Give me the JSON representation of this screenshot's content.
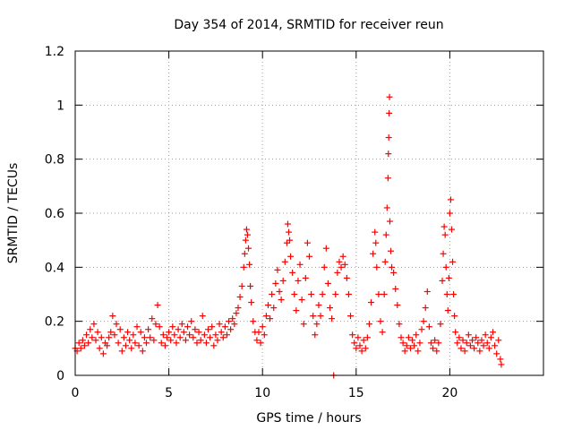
{
  "chart_data": {
    "type": "scatter",
    "title": "Day 354 of 2014, SRMTID for receiver reun",
    "xlabel": "GPS time / hours",
    "ylabel": "SRMTID / TECUs",
    "xlim": [
      0,
      25
    ],
    "ylim": [
      0,
      1.2
    ],
    "xticks": [
      0,
      5,
      10,
      15,
      20
    ],
    "yticks": [
      0,
      0.2,
      0.4,
      0.6,
      0.8,
      1,
      1.2
    ],
    "xtick_labels": [
      "0",
      "5",
      "10",
      "15",
      "20"
    ],
    "ytick_labels": [
      "0",
      "0.2",
      "0.4",
      "0.6",
      "0.8",
      "1",
      "1.2"
    ],
    "grid": true,
    "marker": "plus",
    "color": "#ff0000",
    "series": [
      {
        "name": "SRMTID",
        "points": [
          [
            0.0,
            0.1
          ],
          [
            0.1,
            0.09
          ],
          [
            0.2,
            0.12
          ],
          [
            0.3,
            0.1
          ],
          [
            0.4,
            0.13
          ],
          [
            0.5,
            0.11
          ],
          [
            0.6,
            0.15
          ],
          [
            0.7,
            0.12
          ],
          [
            0.8,
            0.17
          ],
          [
            0.9,
            0.14
          ],
          [
            1.0,
            0.19
          ],
          [
            1.1,
            0.13
          ],
          [
            1.2,
            0.16
          ],
          [
            1.3,
            0.1
          ],
          [
            1.4,
            0.14
          ],
          [
            1.5,
            0.08
          ],
          [
            1.6,
            0.12
          ],
          [
            1.7,
            0.11
          ],
          [
            1.8,
            0.14
          ],
          [
            1.9,
            0.16
          ],
          [
            2.0,
            0.22
          ],
          [
            2.1,
            0.15
          ],
          [
            2.2,
            0.19
          ],
          [
            2.3,
            0.12
          ],
          [
            2.4,
            0.17
          ],
          [
            2.5,
            0.09
          ],
          [
            2.6,
            0.14
          ],
          [
            2.7,
            0.11
          ],
          [
            2.8,
            0.16
          ],
          [
            2.9,
            0.13
          ],
          [
            3.0,
            0.1
          ],
          [
            3.1,
            0.15
          ],
          [
            3.2,
            0.12
          ],
          [
            3.3,
            0.18
          ],
          [
            3.4,
            0.11
          ],
          [
            3.5,
            0.16
          ],
          [
            3.6,
            0.09
          ],
          [
            3.7,
            0.14
          ],
          [
            3.8,
            0.12
          ],
          [
            3.9,
            0.17
          ],
          [
            4.0,
            0.14
          ],
          [
            4.1,
            0.21
          ],
          [
            4.2,
            0.13
          ],
          [
            4.3,
            0.19
          ],
          [
            4.4,
            0.26
          ],
          [
            4.5,
            0.18
          ],
          [
            4.6,
            0.12
          ],
          [
            4.7,
            0.15
          ],
          [
            4.8,
            0.11
          ],
          [
            4.9,
            0.14
          ],
          [
            5.0,
            0.16
          ],
          [
            5.1,
            0.13
          ],
          [
            5.2,
            0.18
          ],
          [
            5.3,
            0.15
          ],
          [
            5.4,
            0.12
          ],
          [
            5.5,
            0.17
          ],
          [
            5.6,
            0.14
          ],
          [
            5.7,
            0.19
          ],
          [
            5.8,
            0.16
          ],
          [
            5.9,
            0.13
          ],
          [
            6.0,
            0.18
          ],
          [
            6.1,
            0.15
          ],
          [
            6.2,
            0.2
          ],
          [
            6.3,
            0.14
          ],
          [
            6.4,
            0.17
          ],
          [
            6.5,
            0.12
          ],
          [
            6.6,
            0.16
          ],
          [
            6.7,
            0.13
          ],
          [
            6.8,
            0.22
          ],
          [
            6.9,
            0.15
          ],
          [
            7.0,
            0.12
          ],
          [
            7.1,
            0.17
          ],
          [
            7.2,
            0.14
          ],
          [
            7.3,
            0.18
          ],
          [
            7.4,
            0.11
          ],
          [
            7.5,
            0.15
          ],
          [
            7.6,
            0.13
          ],
          [
            7.7,
            0.19
          ],
          [
            7.8,
            0.16
          ],
          [
            7.9,
            0.14
          ],
          [
            8.0,
            0.18
          ],
          [
            8.1,
            0.15
          ],
          [
            8.2,
            0.2
          ],
          [
            8.3,
            0.17
          ],
          [
            8.4,
            0.21
          ],
          [
            8.5,
            0.19
          ],
          [
            8.6,
            0.23
          ],
          [
            8.7,
            0.25
          ],
          [
            8.8,
            0.29
          ],
          [
            8.9,
            0.33
          ],
          [
            9.0,
            0.4
          ],
          [
            9.05,
            0.45
          ],
          [
            9.1,
            0.5
          ],
          [
            9.15,
            0.54
          ],
          [
            9.2,
            0.52
          ],
          [
            9.25,
            0.47
          ],
          [
            9.3,
            0.41
          ],
          [
            9.35,
            0.33
          ],
          [
            9.4,
            0.27
          ],
          [
            9.5,
            0.2
          ],
          [
            9.6,
            0.16
          ],
          [
            9.7,
            0.13
          ],
          [
            9.8,
            0.16
          ],
          [
            9.9,
            0.12
          ],
          [
            10.0,
            0.18
          ],
          [
            10.1,
            0.15
          ],
          [
            10.2,
            0.22
          ],
          [
            10.3,
            0.26
          ],
          [
            10.4,
            0.21
          ],
          [
            10.5,
            0.3
          ],
          [
            10.6,
            0.25
          ],
          [
            10.7,
            0.34
          ],
          [
            10.8,
            0.39
          ],
          [
            10.9,
            0.31
          ],
          [
            11.0,
            0.28
          ],
          [
            11.1,
            0.35
          ],
          [
            11.2,
            0.42
          ],
          [
            11.3,
            0.49
          ],
          [
            11.35,
            0.56
          ],
          [
            11.4,
            0.53
          ],
          [
            11.45,
            0.5
          ],
          [
            11.5,
            0.44
          ],
          [
            11.6,
            0.38
          ],
          [
            11.7,
            0.3
          ],
          [
            11.8,
            0.24
          ],
          [
            11.9,
            0.35
          ],
          [
            12.0,
            0.41
          ],
          [
            12.1,
            0.28
          ],
          [
            12.2,
            0.19
          ],
          [
            12.3,
            0.36
          ],
          [
            12.4,
            0.49
          ],
          [
            12.5,
            0.44
          ],
          [
            12.6,
            0.3
          ],
          [
            12.7,
            0.22
          ],
          [
            12.8,
            0.15
          ],
          [
            12.9,
            0.19
          ],
          [
            13.0,
            0.26
          ],
          [
            13.1,
            0.22
          ],
          [
            13.2,
            0.3
          ],
          [
            13.3,
            0.4
          ],
          [
            13.4,
            0.47
          ],
          [
            13.5,
            0.34
          ],
          [
            13.6,
            0.25
          ],
          [
            13.7,
            0.21
          ],
          [
            13.8,
            0.0
          ],
          [
            13.9,
            0.3
          ],
          [
            14.0,
            0.38
          ],
          [
            14.1,
            0.42
          ],
          [
            14.2,
            0.4
          ],
          [
            14.3,
            0.44
          ],
          [
            14.4,
            0.41
          ],
          [
            14.5,
            0.36
          ],
          [
            14.6,
            0.3
          ],
          [
            14.7,
            0.22
          ],
          [
            14.8,
            0.15
          ],
          [
            14.9,
            0.12
          ],
          [
            15.0,
            0.1
          ],
          [
            15.1,
            0.14
          ],
          [
            15.2,
            0.11
          ],
          [
            15.3,
            0.09
          ],
          [
            15.4,
            0.13
          ],
          [
            15.5,
            0.1
          ],
          [
            15.6,
            0.14
          ],
          [
            15.7,
            0.19
          ],
          [
            15.8,
            0.27
          ],
          [
            15.9,
            0.45
          ],
          [
            16.0,
            0.53
          ],
          [
            16.05,
            0.49
          ],
          [
            16.1,
            0.4
          ],
          [
            16.2,
            0.3
          ],
          [
            16.3,
            0.2
          ],
          [
            16.4,
            0.16
          ],
          [
            16.5,
            0.3
          ],
          [
            16.55,
            0.42
          ],
          [
            16.6,
            0.52
          ],
          [
            16.65,
            0.62
          ],
          [
            16.7,
            0.73
          ],
          [
            16.72,
            0.82
          ],
          [
            16.74,
            0.88
          ],
          [
            16.76,
            0.97
          ],
          [
            16.78,
            1.03
          ],
          [
            16.8,
            0.57
          ],
          [
            16.85,
            0.46
          ],
          [
            16.9,
            0.4
          ],
          [
            17.0,
            0.38
          ],
          [
            17.1,
            0.32
          ],
          [
            17.2,
            0.26
          ],
          [
            17.3,
            0.19
          ],
          [
            17.4,
            0.14
          ],
          [
            17.5,
            0.12
          ],
          [
            17.6,
            0.09
          ],
          [
            17.7,
            0.11
          ],
          [
            17.8,
            0.14
          ],
          [
            17.9,
            0.1
          ],
          [
            18.0,
            0.13
          ],
          [
            18.1,
            0.11
          ],
          [
            18.2,
            0.15
          ],
          [
            18.3,
            0.09
          ],
          [
            18.4,
            0.12
          ],
          [
            18.5,
            0.17
          ],
          [
            18.6,
            0.2
          ],
          [
            18.7,
            0.25
          ],
          [
            18.8,
            0.31
          ],
          [
            18.9,
            0.18
          ],
          [
            19.0,
            0.12
          ],
          [
            19.1,
            0.1
          ],
          [
            19.2,
            0.13
          ],
          [
            19.3,
            0.09
          ],
          [
            19.4,
            0.12
          ],
          [
            19.5,
            0.19
          ],
          [
            19.6,
            0.35
          ],
          [
            19.65,
            0.45
          ],
          [
            19.7,
            0.55
          ],
          [
            19.75,
            0.52
          ],
          [
            19.8,
            0.4
          ],
          [
            19.85,
            0.3
          ],
          [
            19.9,
            0.24
          ],
          [
            19.95,
            0.36
          ],
          [
            20.0,
            0.6
          ],
          [
            20.05,
            0.65
          ],
          [
            20.1,
            0.54
          ],
          [
            20.15,
            0.42
          ],
          [
            20.2,
            0.3
          ],
          [
            20.25,
            0.22
          ],
          [
            20.3,
            0.16
          ],
          [
            20.4,
            0.12
          ],
          [
            20.5,
            0.14
          ],
          [
            20.6,
            0.1
          ],
          [
            20.7,
            0.13
          ],
          [
            20.8,
            0.09
          ],
          [
            20.9,
            0.12
          ],
          [
            21.0,
            0.15
          ],
          [
            21.1,
            0.11
          ],
          [
            21.2,
            0.13
          ],
          [
            21.3,
            0.1
          ],
          [
            21.4,
            0.14
          ],
          [
            21.5,
            0.12
          ],
          [
            21.6,
            0.09
          ],
          [
            21.7,
            0.13
          ],
          [
            21.8,
            0.11
          ],
          [
            21.9,
            0.15
          ],
          [
            22.0,
            0.12
          ],
          [
            22.1,
            0.1
          ],
          [
            22.2,
            0.14
          ],
          [
            22.3,
            0.16
          ],
          [
            22.4,
            0.11
          ],
          [
            22.5,
            0.08
          ],
          [
            22.6,
            0.13
          ],
          [
            22.7,
            0.06
          ],
          [
            22.75,
            0.04
          ]
        ]
      }
    ]
  }
}
